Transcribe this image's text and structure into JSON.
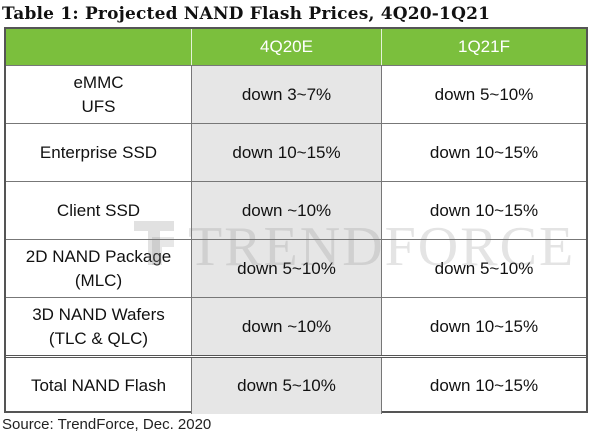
{
  "title": "Table 1: Projected NAND Flash Prices, 4Q20-1Q21",
  "columns": [
    "",
    "4Q20E",
    "1Q21F"
  ],
  "rows": [
    {
      "label_lines": [
        "eMMC",
        "UFS"
      ],
      "q4": "down 3~7%",
      "q1": "down 5~10%"
    },
    {
      "label_lines": [
        "Enterprise SSD"
      ],
      "q4": "down 10~15%",
      "q1": "down 10~15%"
    },
    {
      "label_lines": [
        "Client SSD"
      ],
      "q4": "down ~10%",
      "q1": "down 10~15%"
    },
    {
      "label_lines": [
        "2D NAND Package",
        "(MLC)"
      ],
      "q4": "down 5~10%",
      "q1": "down 5~10%"
    },
    {
      "label_lines": [
        "3D NAND Wafers",
        "(TLC & QLC)"
      ],
      "q4": "down ~10%",
      "q1": "down 10~15%"
    },
    {
      "label_lines": [
        "Total NAND Flash"
      ],
      "q4": "down 5~10%",
      "q1": "down 10~15%"
    }
  ],
  "watermark": "TRENDFORCE",
  "source": "Source: TrendForce, Dec. 2020",
  "colors": {
    "header_bg": "#7bbf3d",
    "header_text": "#ffffff",
    "shaded_column": "#e6e6e6",
    "border": "#555555"
  }
}
